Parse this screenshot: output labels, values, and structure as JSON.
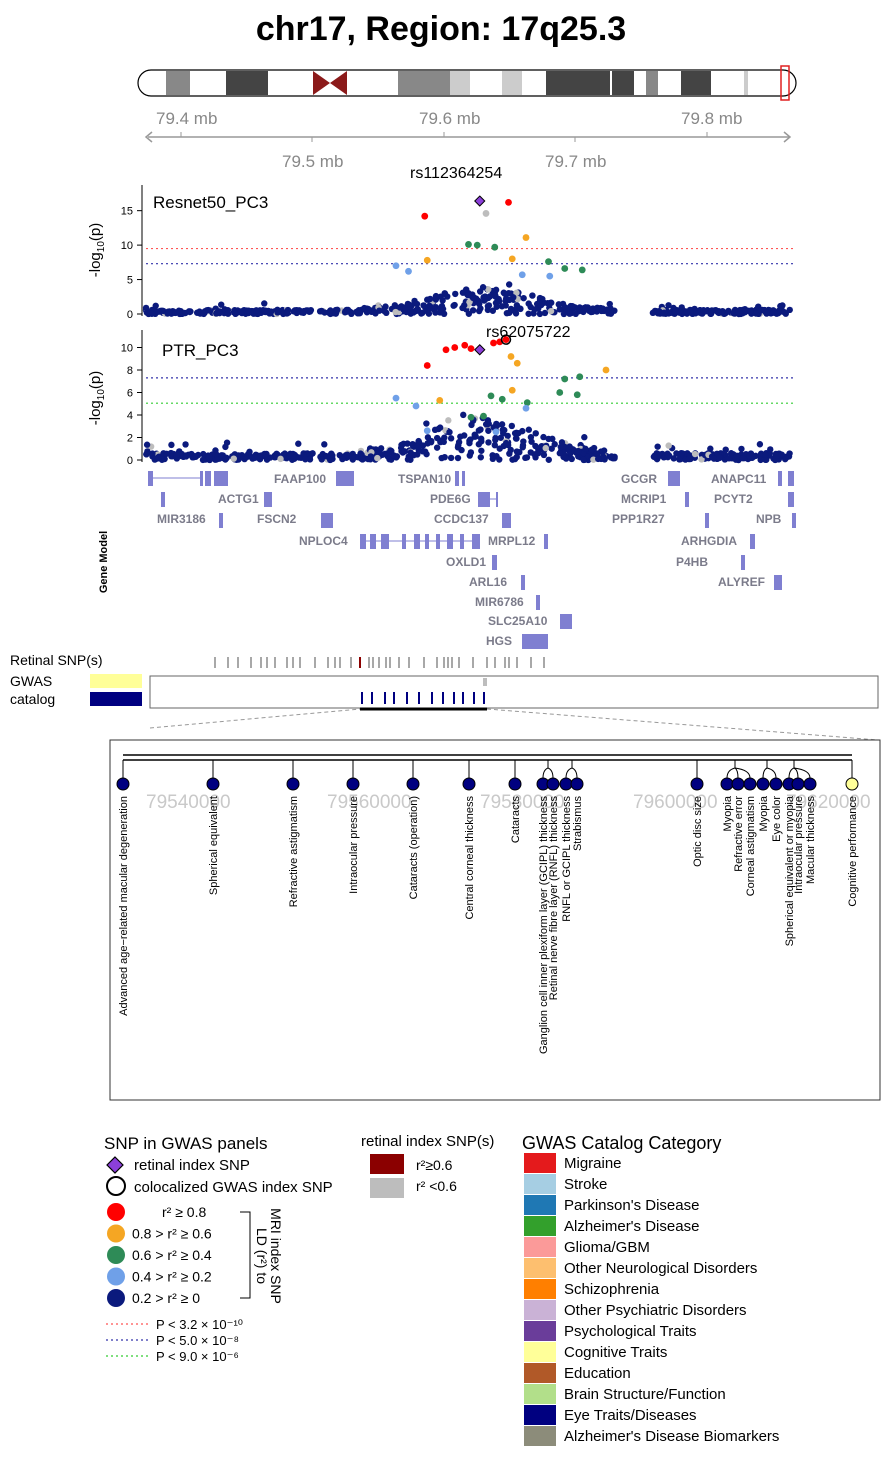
{
  "title": "chr17, Region: 17q25.3",
  "chromosome": {
    "ticks_top": [
      "79.4 mb",
      "79.6 mb",
      "79.8 mb"
    ],
    "ticks_bottom": [
      "79.5 mb",
      "79.7 mb"
    ]
  },
  "chart_data": [
    {
      "type": "scatter",
      "panel": "Resnet50_PC3",
      "ylabel_base": "-log",
      "ylabel_sub": "10",
      "ylabel_var": "(p)",
      "yticks": [
        "0",
        "5",
        "10",
        "15"
      ],
      "ylim": [
        0,
        18
      ],
      "x_range_mb": [
        79.32,
        79.84
      ],
      "lead_label": "rs112364254",
      "threshold_lines": [
        {
          "p_log10": 9.5,
          "color": "#ff5555"
        },
        {
          "p_log10": 7.3,
          "color": "#3333aa"
        }
      ],
      "highlighted_points": [
        {
          "x": 79.543,
          "y": 14.2,
          "color": "#ff0000"
        },
        {
          "x": 79.587,
          "y": 16.4,
          "color": "#8b3fd9",
          "shape": "diamond"
        },
        {
          "x": 79.61,
          "y": 16.2,
          "color": "#ff0000"
        },
        {
          "x": 79.592,
          "y": 14.6,
          "color": "#bdbdbd"
        },
        {
          "x": 79.624,
          "y": 11.1,
          "color": "#f5a623"
        },
        {
          "x": 79.545,
          "y": 7.8,
          "color": "#f5a623"
        },
        {
          "x": 79.613,
          "y": 8.0,
          "color": "#f5a623"
        },
        {
          "x": 79.578,
          "y": 10.1,
          "color": "#2e8b57"
        },
        {
          "x": 79.585,
          "y": 10.0,
          "color": "#2e8b57"
        },
        {
          "x": 79.599,
          "y": 9.7,
          "color": "#2e8b57"
        },
        {
          "x": 79.642,
          "y": 7.6,
          "color": "#2e8b57"
        },
        {
          "x": 79.655,
          "y": 6.6,
          "color": "#2e8b57"
        },
        {
          "x": 79.669,
          "y": 6.4,
          "color": "#2e8b57"
        },
        {
          "x": 79.52,
          "y": 7.0,
          "color": "#6fa0e8"
        },
        {
          "x": 79.53,
          "y": 6.2,
          "color": "#6fa0e8"
        },
        {
          "x": 79.621,
          "y": 5.7,
          "color": "#6fa0e8"
        },
        {
          "x": 79.643,
          "y": 5.5,
          "color": "#6fa0e8"
        }
      ]
    },
    {
      "type": "scatter",
      "panel": "PTR_PC3",
      "ylabel_base": "-log",
      "ylabel_sub": "10",
      "ylabel_var": "(p)",
      "yticks": [
        "0",
        "2",
        "4",
        "6",
        "8",
        "10"
      ],
      "ylim": [
        0,
        11.2
      ],
      "x_range_mb": [
        79.32,
        79.84
      ],
      "lead_label": "rs62075722",
      "threshold_lines": [
        {
          "p_log10": 7.3,
          "color": "#3333aa"
        },
        {
          "p_log10": 5.05,
          "color": "#33cc33"
        }
      ],
      "highlighted_points": [
        {
          "x": 79.545,
          "y": 8.4,
          "color": "#ff0000"
        },
        {
          "x": 79.56,
          "y": 9.8,
          "color": "#ff0000"
        },
        {
          "x": 79.567,
          "y": 10.0,
          "color": "#ff0000"
        },
        {
          "x": 79.575,
          "y": 10.2,
          "color": "#ff0000"
        },
        {
          "x": 79.58,
          "y": 9.9,
          "color": "#ff0000"
        },
        {
          "x": 79.587,
          "y": 9.8,
          "color": "#8b3fd9",
          "shape": "diamond"
        },
        {
          "x": 79.598,
          "y": 10.4,
          "color": "#ff0000"
        },
        {
          "x": 79.603,
          "y": 10.5,
          "color": "#ff0000"
        },
        {
          "x": 79.608,
          "y": 10.7,
          "color": "#ff0000",
          "ring": true
        },
        {
          "x": 79.612,
          "y": 9.2,
          "color": "#f5a623"
        },
        {
          "x": 79.617,
          "y": 8.6,
          "color": "#f5a623"
        },
        {
          "x": 79.613,
          "y": 6.2,
          "color": "#f5a623"
        },
        {
          "x": 79.555,
          "y": 5.3,
          "color": "#f5a623"
        },
        {
          "x": 79.688,
          "y": 8.0,
          "color": "#f5a623"
        },
        {
          "x": 79.655,
          "y": 7.2,
          "color": "#2e8b57"
        },
        {
          "x": 79.667,
          "y": 7.4,
          "color": "#2e8b57"
        },
        {
          "x": 79.651,
          "y": 6.0,
          "color": "#2e8b57"
        },
        {
          "x": 79.665,
          "y": 5.8,
          "color": "#2e8b57"
        },
        {
          "x": 79.596,
          "y": 5.7,
          "color": "#2e8b57"
        },
        {
          "x": 79.605,
          "y": 5.4,
          "color": "#2e8b57"
        },
        {
          "x": 79.625,
          "y": 5.1,
          "color": "#2e8b57"
        },
        {
          "x": 79.58,
          "y": 3.8,
          "color": "#2e8b57"
        },
        {
          "x": 79.59,
          "y": 3.9,
          "color": "#2e8b57"
        },
        {
          "x": 79.52,
          "y": 5.5,
          "color": "#6fa0e8"
        },
        {
          "x": 79.536,
          "y": 4.8,
          "color": "#6fa0e8"
        },
        {
          "x": 79.624,
          "y": 4.6,
          "color": "#6fa0e8"
        },
        {
          "x": 79.545,
          "y": 2.6,
          "color": "#6fa0e8"
        },
        {
          "x": 79.6,
          "y": 2.5,
          "color": "#6fa0e8"
        }
      ]
    }
  ],
  "genes": [
    "FAAP100",
    "TSPAN10",
    "ACTG1",
    "PDE6G",
    "MIR3186",
    "FSCN2",
    "CCDC137",
    "NPLOC4",
    "MRPL12",
    "OXLD1",
    "ARL16",
    "MIR6786",
    "SLC25A10",
    "HGS",
    "GCGR",
    "ANAPC11",
    "MCRIP1",
    "PCYT2",
    "PPP1R27",
    "NPB",
    "ARHGDIA",
    "P4HB",
    "ALYREF"
  ],
  "gene_model_label": "Gene Model",
  "retinal_snp_label": "Retinal SNP(s)",
  "gwas_label_line1": "GWAS",
  "gwas_label_line2": "catalog",
  "zoom_axis_labels": [
    "79540000",
    "79560000",
    "79580000",
    "79600000",
    "79620000"
  ],
  "traits": [
    "Advanced age−related macular degeneration",
    "Spherical equivalent",
    "Refractive astigmatism",
    "Intraocular pressure",
    "Cataracts (operation)",
    "Central corneal thickness",
    "Cataracts",
    "Ganglion cell inner plexiform layer (GCIPL) thickness",
    "Retinal nerve fibre layer (RNFL) thickness",
    "RNFL or GCIPL thickness",
    "Strabismus",
    "Optic disc size",
    "Myopia",
    "Refractive error",
    "Corneal astigmatism",
    "Myopia",
    "Eye color",
    "Spherical equivalent or myopia",
    "Intraocular pressure",
    "Macular thickness",
    "Cognitive performance"
  ],
  "legend": {
    "snp_title": "SNP in GWAS panels",
    "retinal_index": "retinal index SNP",
    "colocalized": "colocalized GWAS index SNP",
    "ld_bins": [
      {
        "label": "r² ≥ 0.8",
        "color": "#ff0000"
      },
      {
        "label": "0.8 > r² ≥ 0.6",
        "color": "#f5a623"
      },
      {
        "label": "0.6 > r² ≥ 0.4",
        "color": "#2e8b57"
      },
      {
        "label": "0.4 > r² ≥ 0.2",
        "color": "#6fa0e8"
      },
      {
        "label": "0.2 > r² ≥ 0",
        "color": "#0b1a7d"
      }
    ],
    "ld_side_label": "LD (r²) to",
    "ld_side_label2": "MRI index SNP",
    "pvals": [
      {
        "label": "P < 3.2 × 10⁻¹⁰",
        "color": "#ff5555"
      },
      {
        "label": "P < 5.0 × 10⁻⁸",
        "color": "#3333aa"
      },
      {
        "label": "P < 9.0 × 10⁻⁶",
        "color": "#33cc33"
      }
    ],
    "retinal_title": "retinal index SNP(s)",
    "retinal_bins": [
      {
        "label": "r²≥0.6",
        "color": "#8b0000"
      },
      {
        "label": "r² <0.6",
        "color": "#bdbdbd"
      }
    ],
    "category_title": "GWAS Catalog Category",
    "categories": [
      {
        "label": "Migraine",
        "color": "#e41a1c"
      },
      {
        "label": "Stroke",
        "color": "#a6cee3"
      },
      {
        "label": "Parkinson's Disease",
        "color": "#1f78b4"
      },
      {
        "label": "Alzheimer's Disease",
        "color": "#33a02c"
      },
      {
        "label": "Glioma/GBM",
        "color": "#fb9a99"
      },
      {
        "label": "Other Neurological Disorders",
        "color": "#fdbf6f"
      },
      {
        "label": "Schizophrenia",
        "color": "#ff7f00"
      },
      {
        "label": "Other Psychiatric Disorders",
        "color": "#cab2d6"
      },
      {
        "label": "Psychological Traits",
        "color": "#6a3d9a"
      },
      {
        "label": "Cognitive Traits",
        "color": "#ffff99"
      },
      {
        "label": "Education",
        "color": "#b15928"
      },
      {
        "label": "Brain Structure/Function",
        "color": "#b2df8a"
      },
      {
        "label": "Eye Traits/Diseases",
        "color": "#000080"
      },
      {
        "label": "Alzheimer's Disease Biomarkers",
        "color": "#8c8c7a"
      }
    ]
  }
}
